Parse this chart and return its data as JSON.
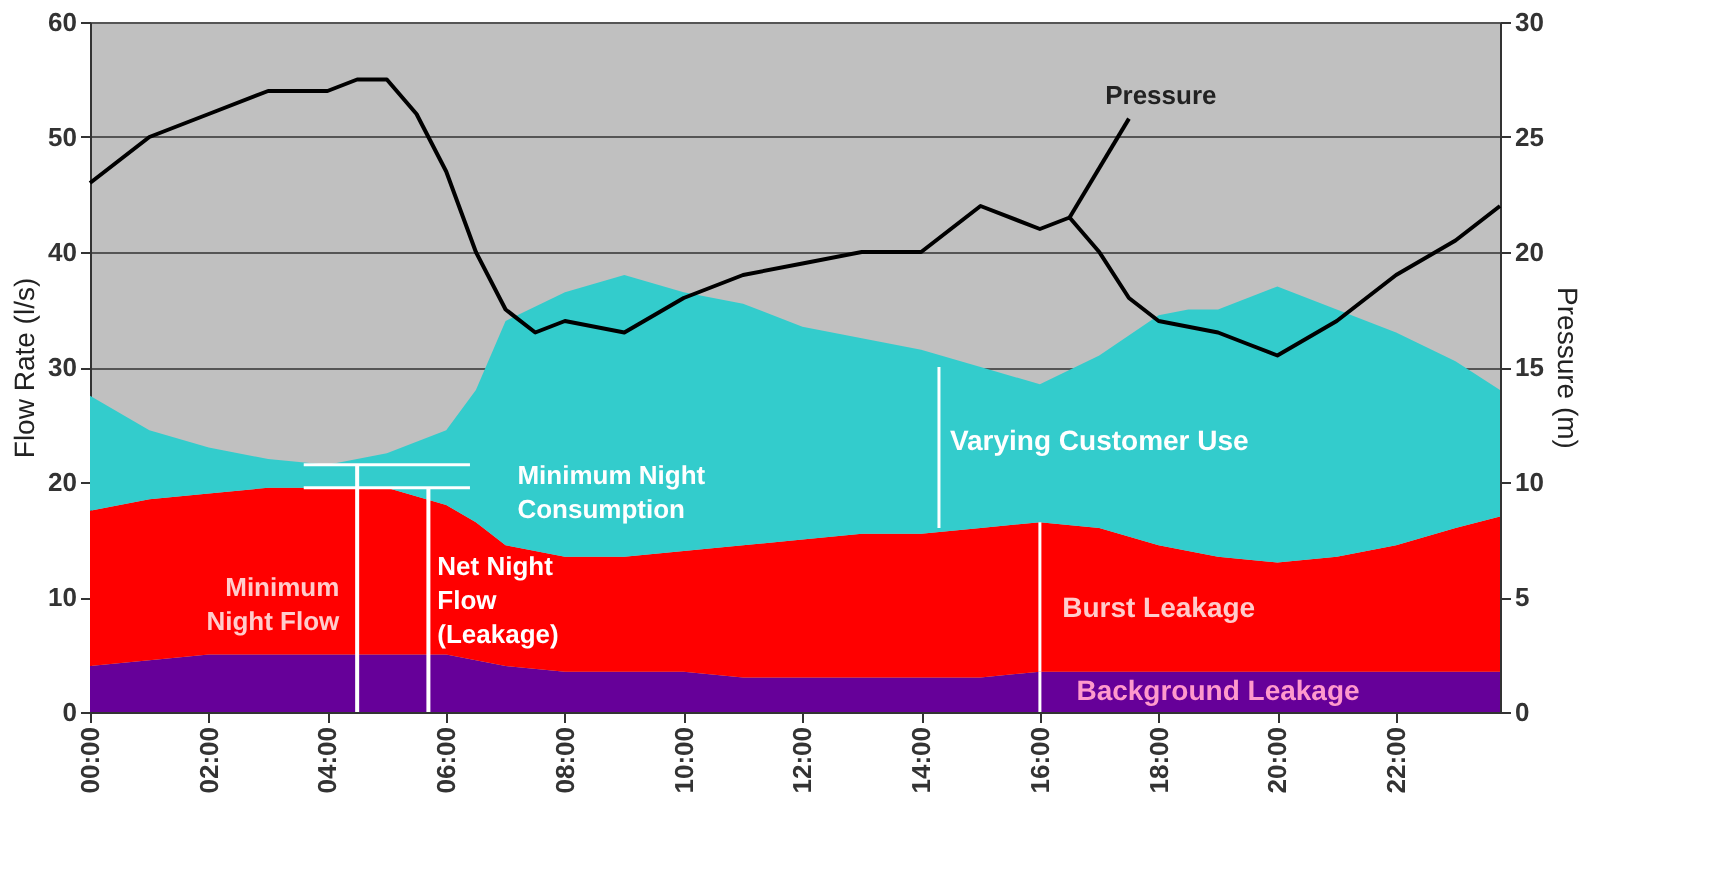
{
  "chart_data": {
    "type": "area",
    "stacked": true,
    "x": [
      0,
      1,
      2,
      3,
      4,
      5,
      6,
      6.5,
      7,
      8,
      9,
      10,
      11,
      12,
      13,
      14,
      15,
      16,
      17,
      18,
      18.5,
      19,
      20,
      21,
      22,
      23,
      23.75
    ],
    "series": [
      {
        "name": "Background Leakage",
        "color": "#660099",
        "values": [
          4,
          4.5,
          5,
          5,
          5,
          5,
          5,
          4.5,
          4,
          3.5,
          3.5,
          3.5,
          3,
          3,
          3,
          3,
          3,
          3.5,
          3.5,
          3.5,
          3.5,
          3.5,
          3.5,
          3.5,
          3.5,
          3.5,
          3.5
        ]
      },
      {
        "name": "Burst Leakage",
        "color": "#ff0000",
        "values": [
          13.5,
          14,
          14,
          14.5,
          14.5,
          14.5,
          13,
          12,
          10.5,
          10,
          10,
          10.5,
          11.5,
          12,
          12.5,
          12.5,
          13,
          13,
          12.5,
          11,
          10.5,
          10,
          9.5,
          10,
          11,
          12.5,
          13.5
        ]
      },
      {
        "name": "Varying Customer Use",
        "color": "#33cccc",
        "values": [
          10,
          6,
          4,
          2.5,
          2,
          3,
          6.5,
          11.5,
          19.5,
          23,
          24.5,
          22.5,
          21,
          18.5,
          17,
          16,
          14,
          12,
          15,
          20,
          21,
          21.5,
          24,
          21.5,
          18.5,
          14.5,
          11
        ]
      },
      {
        "name": "Pressure",
        "type": "line",
        "axis": "y2",
        "color": "#000000",
        "x": [
          0,
          0.5,
          1,
          2,
          3,
          4,
          4.5,
          5,
          5.5,
          6,
          6.5,
          7,
          7.5,
          8,
          9,
          10,
          11,
          12,
          13,
          14,
          15,
          16,
          16.5,
          17,
          17.5,
          18,
          19,
          19.5,
          20,
          21,
          22,
          23,
          23.75
        ],
        "values": [
          23,
          24,
          25,
          26,
          27,
          27,
          27.5,
          27.5,
          26,
          23.5,
          20,
          17.5,
          16.5,
          17,
          16.5,
          18,
          19,
          19.5,
          20,
          20,
          22,
          21,
          21.5,
          20,
          18,
          17,
          16.5,
          16,
          15.5,
          17,
          19,
          20.5,
          22
        ]
      }
    ],
    "xlim": [
      0,
      23.75
    ],
    "xticks": [
      {
        "value": 0,
        "label": "00:00"
      },
      {
        "value": 2,
        "label": "02:00"
      },
      {
        "value": 4,
        "label": "04:00"
      },
      {
        "value": 6,
        "label": "06:00"
      },
      {
        "value": 8,
        "label": "08:00"
      },
      {
        "value": 10,
        "label": "10:00"
      },
      {
        "value": 12,
        "label": "12:00"
      },
      {
        "value": 14,
        "label": "14:00"
      },
      {
        "value": 16,
        "label": "16:00"
      },
      {
        "value": 18,
        "label": "18:00"
      },
      {
        "value": 20,
        "label": "20:00"
      },
      {
        "value": 22,
        "label": "22:00"
      }
    ],
    "ylim": [
      0,
      60
    ],
    "yticks": [
      0,
      10,
      20,
      30,
      40,
      50,
      60
    ],
    "y2lim": [
      0,
      30
    ],
    "y2ticks": [
      0,
      5,
      10,
      15,
      20,
      25,
      30
    ],
    "ylabel": "Flow Rate (l/s)",
    "y2label": "Pressure (m)",
    "grid": "y",
    "annotations": [
      "Minimum\nNight Flow",
      "Net Night\nFlow\n(Leakage)",
      "Minimum Night\nConsumption"
    ]
  }
}
